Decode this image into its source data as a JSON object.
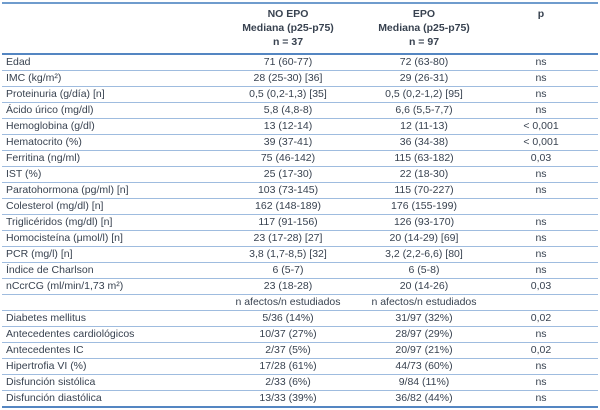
{
  "table": {
    "header": {
      "col2": {
        "line1": "NO EPO",
        "line2": "Mediana (p25-p75)",
        "line3": "n = 37"
      },
      "col3": {
        "line1": "EPO",
        "line2": "Mediana (p25-p75)",
        "line3": "n = 97"
      },
      "p": "p"
    },
    "rows": [
      {
        "label": "Edad",
        "no_epo": "71 (60-77)",
        "epo": "72 (63-80)",
        "p": "ns"
      },
      {
        "label": "IMC (kg/m²)",
        "no_epo": "28 (25-30) [36]",
        "epo": "29 (26-31)",
        "p": "ns"
      },
      {
        "label": "Proteinuria (g/día) [n]",
        "no_epo": "0,5 (0,2-1,3) [35]",
        "epo": "0,5 (0,2-1,2) [95]",
        "p": "ns"
      },
      {
        "label": "Ácido úrico (mg/dl)",
        "no_epo": "5,8 (4,8-8)",
        "epo": "6,6 (5,5-7,7)",
        "p": "ns"
      },
      {
        "label": "Hemoglobina (g/dl)",
        "no_epo": "13 (12-14)",
        "epo": "12 (11-13)",
        "p": "< 0,001"
      },
      {
        "label": "Hematocrito (%)",
        "no_epo": "39 (37-41)",
        "epo": "36 (34-38)",
        "p": "< 0,001"
      },
      {
        "label": "Ferritina (ng/ml)",
        "no_epo": "75 (46-142)",
        "epo": "115 (63-182)",
        "p": "0,03"
      },
      {
        "label": "IST (%)",
        "no_epo": "25 (17-30)",
        "epo": "22 (18-30)",
        "p": "ns"
      },
      {
        "label": "Paratohormona (pg/ml) [n]",
        "no_epo": "103 (73-145)",
        "epo": "115 (70-227)",
        "p": "ns"
      },
      {
        "label": "Colesterol (mg/dl) [n]",
        "no_epo": "162 (148-189)",
        "epo": "176 (155-199)",
        "p": ""
      },
      {
        "label": "Triglicéridos (mg/dl) [n]",
        "no_epo": "117 (91-156)",
        "epo": "126 (93-170)",
        "p": "ns"
      },
      {
        "label": "Homocisteína (μmol/l) [n]",
        "no_epo": "23 (17-28) [27]",
        "epo": "20 (14-29) [69]",
        "p": "ns"
      },
      {
        "label": "PCR (mg/l) [n]",
        "no_epo": "3,8 (1,7-8,5) [32]",
        "epo": "3,2 (2,2-6,6) [80]",
        "p": "ns"
      },
      {
        "label": "Índice de Charlson",
        "no_epo": "6 (5-7)",
        "epo": "6 (5-8)",
        "p": "ns"
      },
      {
        "label": "nCcrCG (ml/min/1,73 m²)",
        "no_epo": "23 (18-28)",
        "epo": "20 (14-26)",
        "p": "0,03"
      },
      {
        "label": "",
        "no_epo": "n afectos/n estudiados",
        "epo": "n afectos/n estudiados",
        "p": ""
      },
      {
        "label": "Diabetes mellitus",
        "no_epo": "5/36 (14%)",
        "epo": "31/97 (32%)",
        "p": "0,02"
      },
      {
        "label": "Antecedentes cardiológicos",
        "no_epo": "10/37 (27%)",
        "epo": "28/97 (29%)",
        "p": "ns"
      },
      {
        "label": "Antecedentes IC",
        "no_epo": "2/37 (5%)",
        "epo": "20/97 (21%)",
        "p": "0,02"
      },
      {
        "label": "Hipertrofia VI (%)",
        "no_epo": "17/28 (61%)",
        "epo": "44/73 (60%)",
        "p": "ns"
      },
      {
        "label": "Disfunción sistólica",
        "no_epo": "2/33 (6%)",
        "epo": "9/84 (11%)",
        "p": "ns"
      },
      {
        "label": "Disfunción diastólica",
        "no_epo": "13/33 (39%)",
        "epo": "36/82 (44%)",
        "p": "ns"
      }
    ]
  }
}
